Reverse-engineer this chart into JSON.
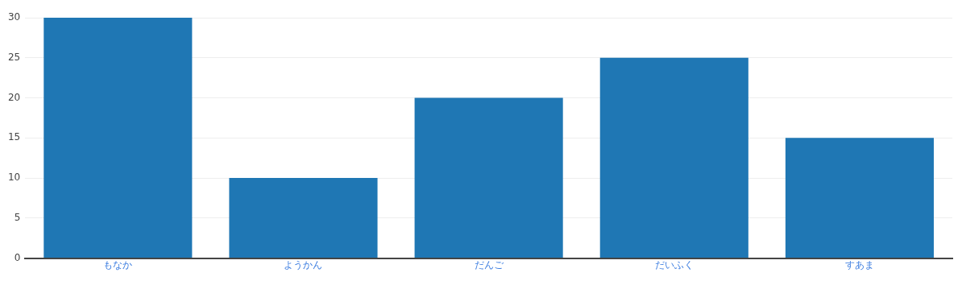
{
  "chart_data": {
    "type": "bar",
    "categories": [
      "もなか",
      "ようかん",
      "だんご",
      "だいふく",
      "すあま"
    ],
    "values": [
      30,
      10,
      20,
      25,
      15
    ],
    "color": "#1f77b4",
    "ylim": [
      0,
      30
    ],
    "yticks": [
      0,
      5,
      10,
      15,
      20,
      25,
      30
    ],
    "grid": "y",
    "legend": false
  }
}
